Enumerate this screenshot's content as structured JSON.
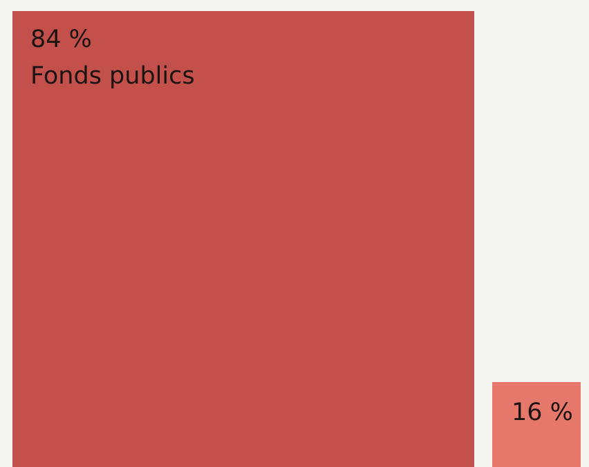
{
  "chart_data": {
    "type": "area-proportion",
    "title": "",
    "categories": [
      "Fonds publics",
      ""
    ],
    "values": [
      84,
      16
    ],
    "unit": "%",
    "items": [
      {
        "value": 84,
        "value_label": "84 %",
        "label": "Fonds publics",
        "color": "#c4504b"
      },
      {
        "value": 16,
        "value_label": "16 %",
        "label": "",
        "color": "#e5776b"
      }
    ],
    "background": "#f4f4f1"
  }
}
